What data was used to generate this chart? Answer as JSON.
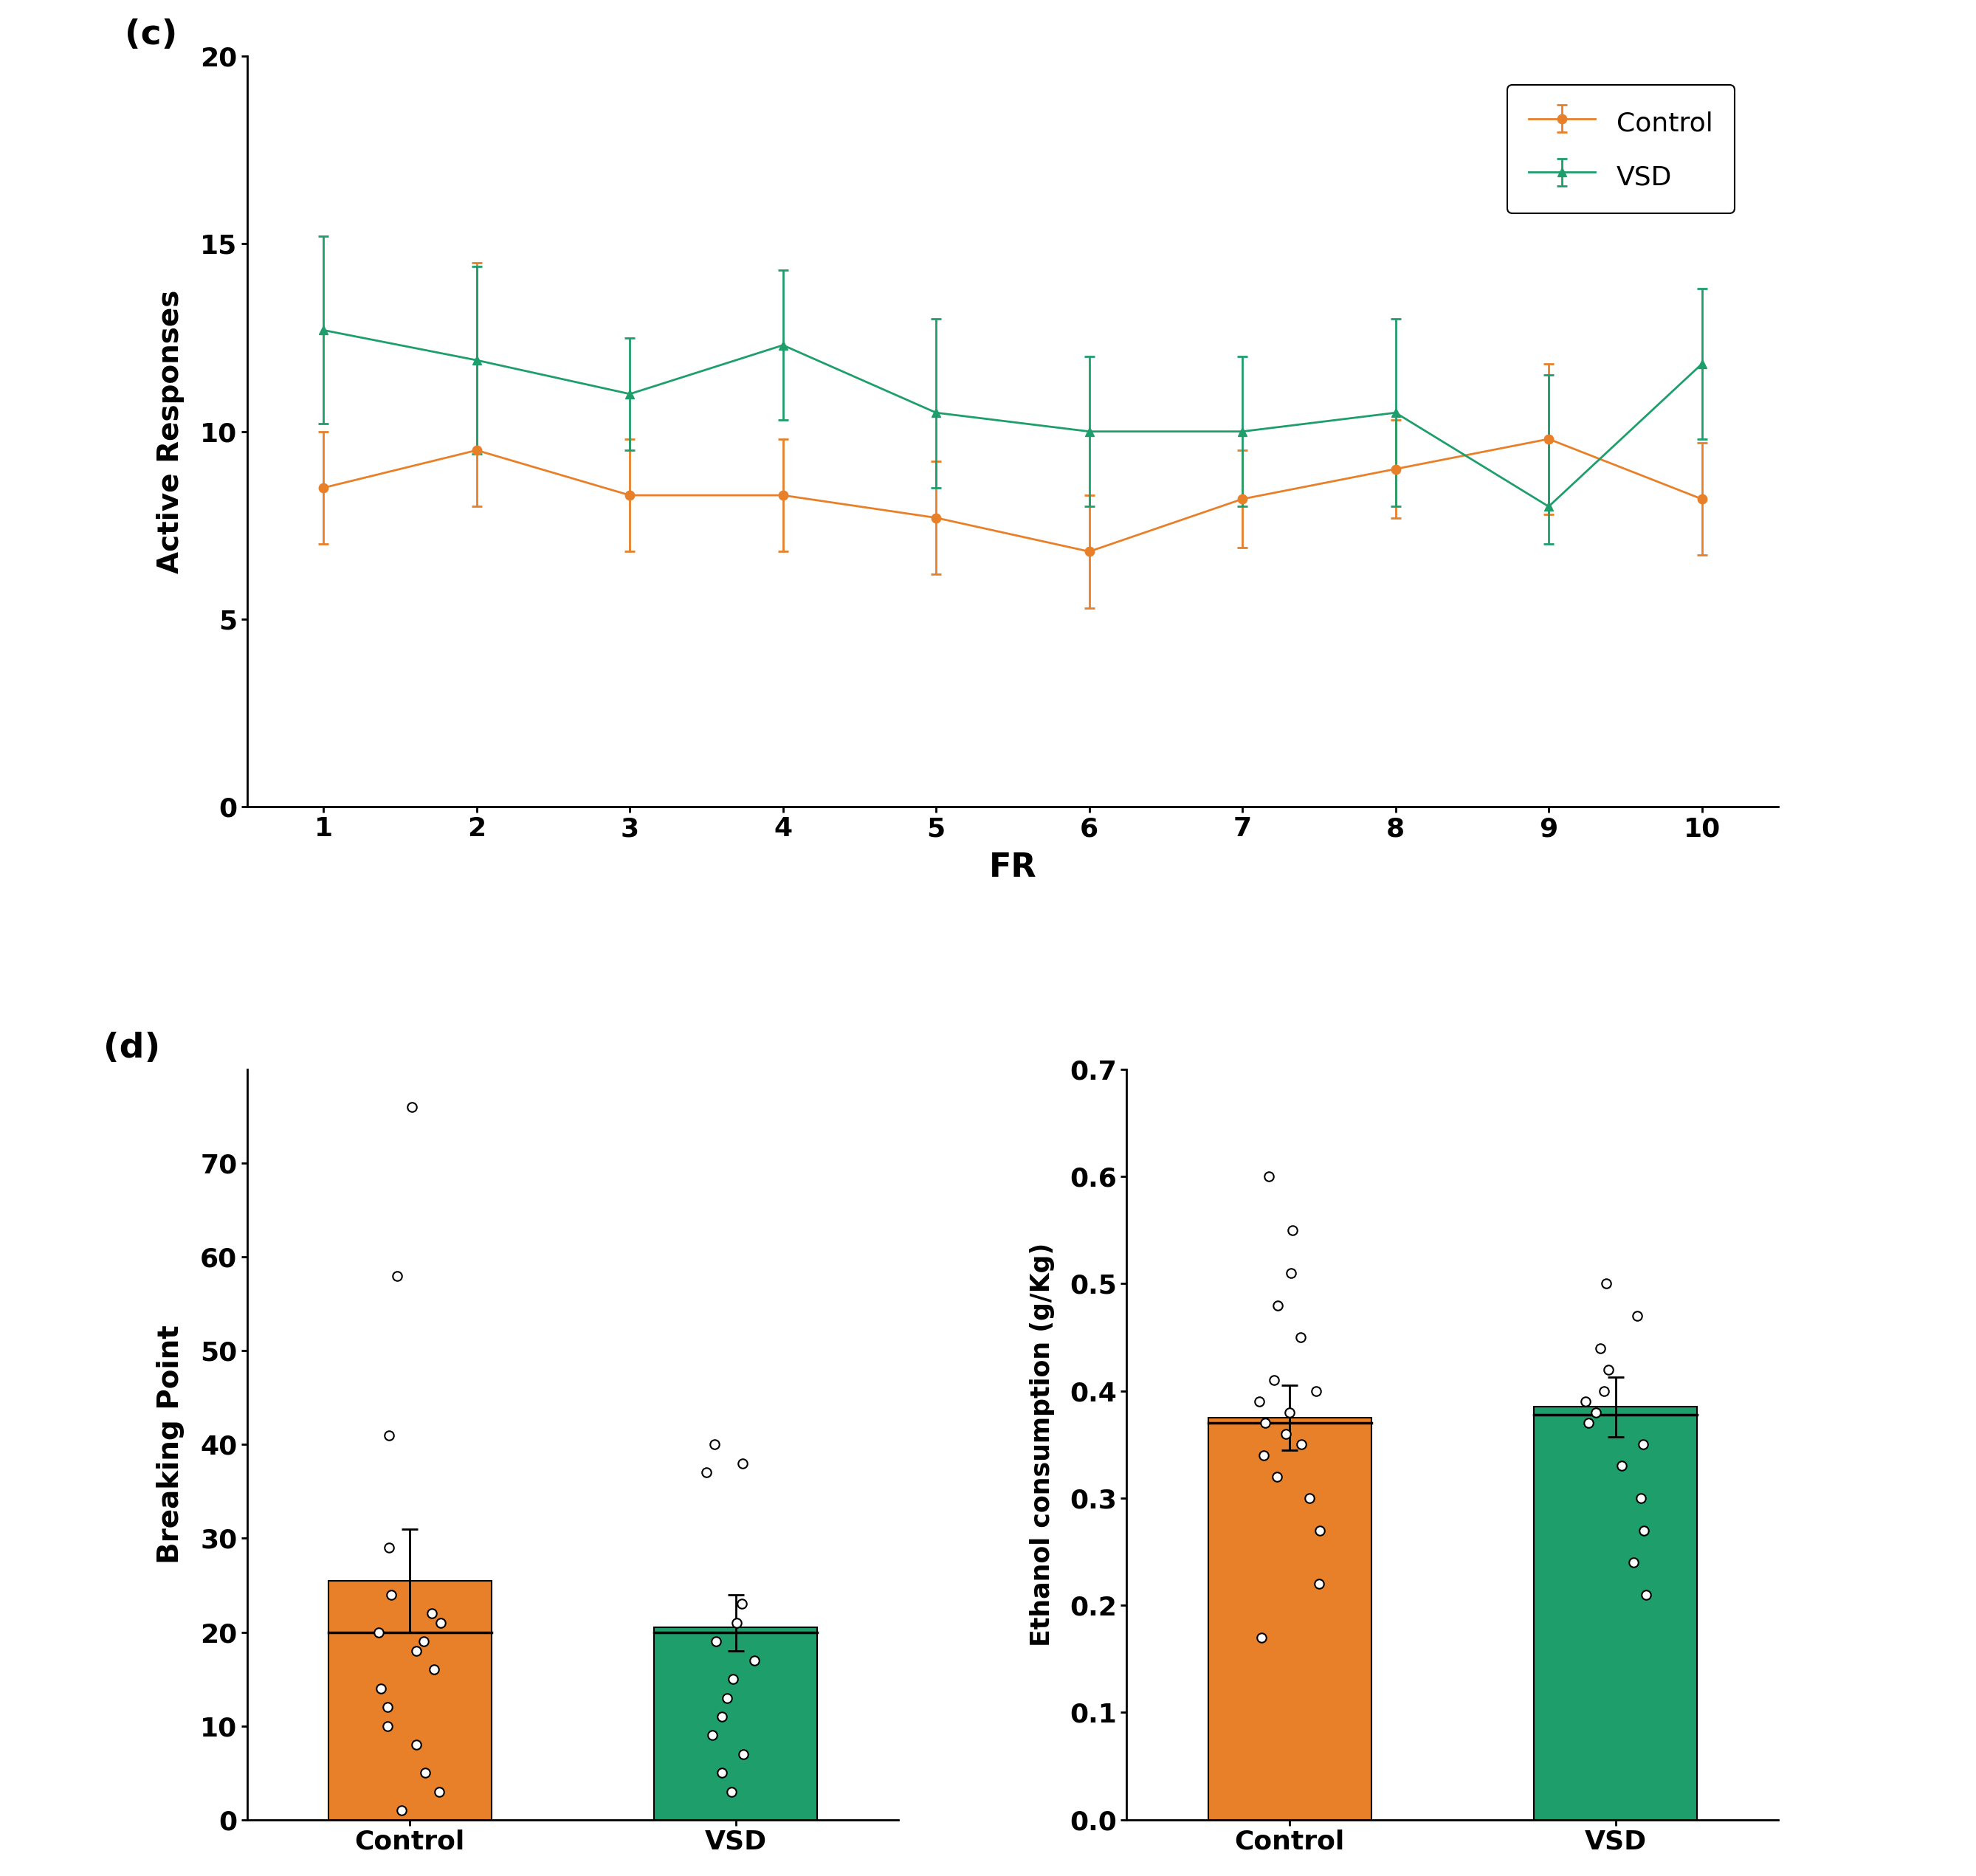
{
  "panel_c_label": "(c)",
  "panel_d_label": "(d)",
  "fr_x": [
    1,
    2,
    3,
    4,
    5,
    6,
    7,
    8,
    9,
    10
  ],
  "control_y": [
    8.5,
    9.5,
    8.3,
    8.3,
    7.7,
    6.8,
    8.2,
    9.0,
    9.8,
    8.2
  ],
  "control_err_low": [
    1.5,
    1.5,
    1.5,
    1.5,
    1.5,
    1.5,
    1.3,
    1.3,
    2.0,
    1.5
  ],
  "control_err_high": [
    1.5,
    5.0,
    1.5,
    1.5,
    1.5,
    1.5,
    1.3,
    1.3,
    2.0,
    1.5
  ],
  "vsd_y": [
    12.7,
    11.9,
    11.0,
    12.3,
    10.5,
    10.0,
    10.0,
    10.5,
    8.0,
    11.8
  ],
  "vsd_err_low": [
    2.5,
    2.5,
    1.5,
    2.0,
    2.0,
    2.0,
    2.0,
    2.5,
    1.0,
    2.0
  ],
  "vsd_err_high": [
    2.5,
    2.5,
    1.5,
    2.0,
    2.5,
    2.0,
    2.0,
    2.5,
    3.5,
    2.0
  ],
  "control_color": "#E8802A",
  "vsd_color": "#1E9E6B",
  "ylabel_c": "Active Responses",
  "xlabel_c": "FR",
  "ylim_c": [
    0,
    20
  ],
  "yticks_c": [
    0,
    5,
    10,
    15,
    20
  ],
  "bp_control_bar": 25.5,
  "bp_control_mean": 20.0,
  "bp_control_err_low": 5.5,
  "bp_control_err_high": 5.5,
  "bp_vsd_bar": 20.5,
  "bp_vsd_mean": 20.0,
  "bp_vsd_err_low": 2.5,
  "bp_vsd_err_high": 3.5,
  "bp_control_dots": [
    1,
    3,
    5,
    8,
    10,
    12,
    14,
    16,
    18,
    19,
    20,
    21,
    22,
    24,
    29,
    41,
    58,
    76
  ],
  "bp_vsd_dots": [
    3,
    5,
    7,
    9,
    11,
    13,
    15,
    17,
    19,
    21,
    23,
    37,
    38,
    40
  ],
  "bp_ylim": [
    0,
    80
  ],
  "bp_yticks": [
    0,
    10,
    20,
    30,
    40,
    50,
    60,
    70
  ],
  "bp_ylabel": "Breaking Point",
  "ec_control_bar": 0.375,
  "ec_control_mean": 0.37,
  "ec_control_err_low": 0.03,
  "ec_control_err_high": 0.03,
  "ec_vsd_bar": 0.385,
  "ec_vsd_mean": 0.378,
  "ec_vsd_err_low": 0.028,
  "ec_vsd_err_high": 0.028,
  "ec_control_dots": [
    0.17,
    0.22,
    0.27,
    0.3,
    0.32,
    0.34,
    0.35,
    0.36,
    0.37,
    0.38,
    0.39,
    0.4,
    0.41,
    0.45,
    0.48,
    0.51,
    0.55,
    0.6
  ],
  "ec_vsd_dots": [
    0.21,
    0.24,
    0.27,
    0.3,
    0.33,
    0.35,
    0.37,
    0.38,
    0.39,
    0.4,
    0.42,
    0.44,
    0.47,
    0.5
  ],
  "ec_ylim": [
    0.0,
    0.7
  ],
  "ec_yticks": [
    0.0,
    0.1,
    0.2,
    0.3,
    0.4,
    0.5,
    0.6,
    0.7
  ],
  "ec_ylabel": "Ethanol consumption (g/Kg)",
  "orange_color": "#E8802A",
  "green_color": "#1E9E6B",
  "xlabel_d": ""
}
